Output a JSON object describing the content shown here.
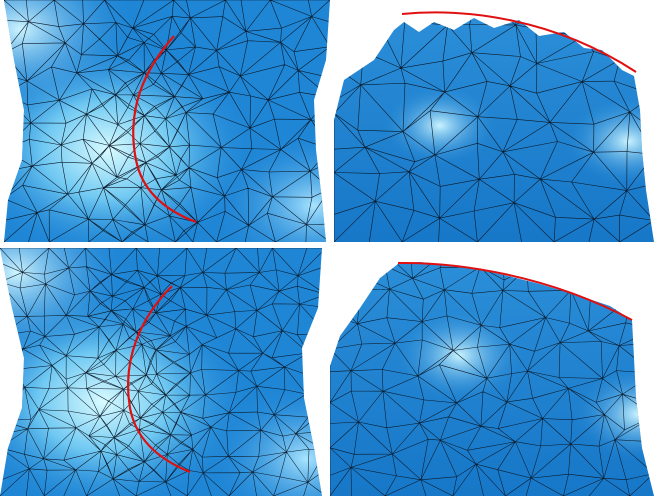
{
  "colors": {
    "mesh_fill": "#1f86d6",
    "mesh_dark": "#0e5e9e",
    "mesh_light": "#bff0ff",
    "edge": "#0a1a2a",
    "curve": "#e01010"
  },
  "panels": [
    {
      "id": "top-left",
      "view": "front",
      "mesh": "coarse"
    },
    {
      "id": "top-right",
      "view": "oblique",
      "mesh": "coarse"
    },
    {
      "id": "bottom-left",
      "view": "front",
      "mesh": "refined"
    },
    {
      "id": "bottom-right",
      "view": "oblique",
      "mesh": "refined"
    }
  ]
}
